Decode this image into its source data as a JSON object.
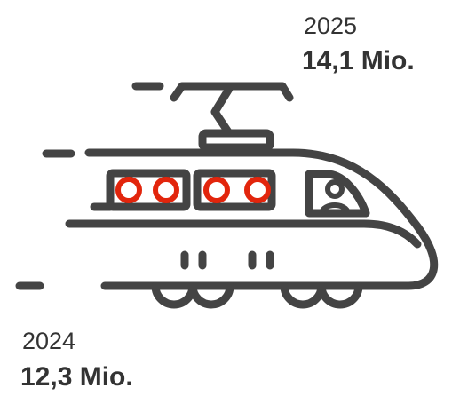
{
  "items": [
    {
      "year": "2025",
      "value": "14,1 Mio."
    },
    {
      "year": "2024",
      "value": "12,3 Mio."
    }
  ]
}
